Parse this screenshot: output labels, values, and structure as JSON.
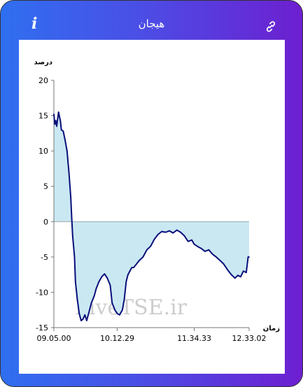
{
  "header": {
    "title": "هیجان",
    "info_icon": "info-icon",
    "link_icon": "link-icon"
  },
  "watermark": "LiveTSE.ir",
  "chart_data": {
    "type": "area",
    "ylabel": "درصد",
    "xlabel": "زمان",
    "ylim": [
      -15,
      20
    ],
    "yticks": [
      -15,
      -10,
      -5,
      0,
      5,
      10,
      15,
      20
    ],
    "x_start": "09.05.00",
    "x_end": "12.33.02",
    "xticks": [
      "09.05.00",
      "10.12.29",
      "11.34.33",
      "12.33.02"
    ],
    "line_color": "#0a0f7a",
    "fill_color": "#c9e8f2",
    "series": [
      {
        "x": [
          "09.05.00",
          "09.06.00",
          "09.07.00",
          "09.08.00",
          "09.10.00",
          "09.12.00",
          "09.13.00",
          "09.15.00",
          "09.17.00",
          "09.19.00",
          "09.21.00",
          "09.23.00",
          "09.24.00",
          "09.25.00",
          "09.27.00",
          "09.28.00",
          "09.30.00",
          "09.32.00",
          "09.34.00",
          "09.36.00",
          "09.38.00",
          "09.40.00",
          "09.43.00",
          "09.45.00",
          "09.48.00",
          "09.50.00",
          "09.53.00",
          "09.56.00",
          "09.59.00",
          "10.02.00",
          "10.05.00",
          "10.07.00",
          "10.10.00",
          "10.12.29",
          "10.15.00",
          "10.18.00",
          "10.20.00",
          "10.22.00",
          "10.24.00",
          "10.26.00",
          "10.28.00",
          "10.30.00",
          "10.33.00",
          "10.36.00",
          "10.40.00",
          "10.44.00",
          "10.48.00",
          "10.52.00",
          "10.56.00",
          "11.00.00",
          "11.04.00",
          "11.08.00",
          "11.12.00",
          "11.16.00",
          "11.20.00",
          "11.24.00",
          "11.28.00",
          "11.32.00",
          "11.34.33",
          "11.38.00",
          "11.42.00",
          "11.46.00",
          "11.50.00",
          "11.54.00",
          "11.58.00",
          "12.02.00",
          "12.06.00",
          "12.10.00",
          "12.14.00",
          "12.18.00",
          "12.21.00",
          "12.24.00",
          "12.27.00",
          "12.30.00",
          "12.32.00",
          "12.33.02"
        ],
        "y": [
          15.2,
          13.8,
          14.3,
          13.5,
          15.5,
          14.2,
          13.0,
          12.8,
          11.5,
          10.0,
          7.0,
          3.5,
          0.5,
          -2.0,
          -5.0,
          -8.5,
          -11.0,
          -13.0,
          -14.0,
          -13.8,
          -13.2,
          -14.0,
          -12.5,
          -11.5,
          -10.5,
          -9.5,
          -8.5,
          -7.8,
          -7.4,
          -8.0,
          -9.0,
          -11.5,
          -12.5,
          -13.0,
          -13.2,
          -12.5,
          -11.0,
          -8.5,
          -7.5,
          -7.0,
          -6.5,
          -6.5,
          -6.0,
          -5.5,
          -5.0,
          -4.0,
          -3.5,
          -2.5,
          -1.8,
          -1.4,
          -1.5,
          -1.3,
          -1.6,
          -1.2,
          -1.5,
          -2.0,
          -2.8,
          -2.6,
          -3.2,
          -3.5,
          -3.8,
          -4.2,
          -4.0,
          -4.6,
          -5.0,
          -5.5,
          -6.0,
          -6.8,
          -7.5,
          -8.0,
          -7.6,
          -7.8,
          -7.0,
          -7.2,
          -5.0,
          -5.0
        ]
      }
    ]
  }
}
